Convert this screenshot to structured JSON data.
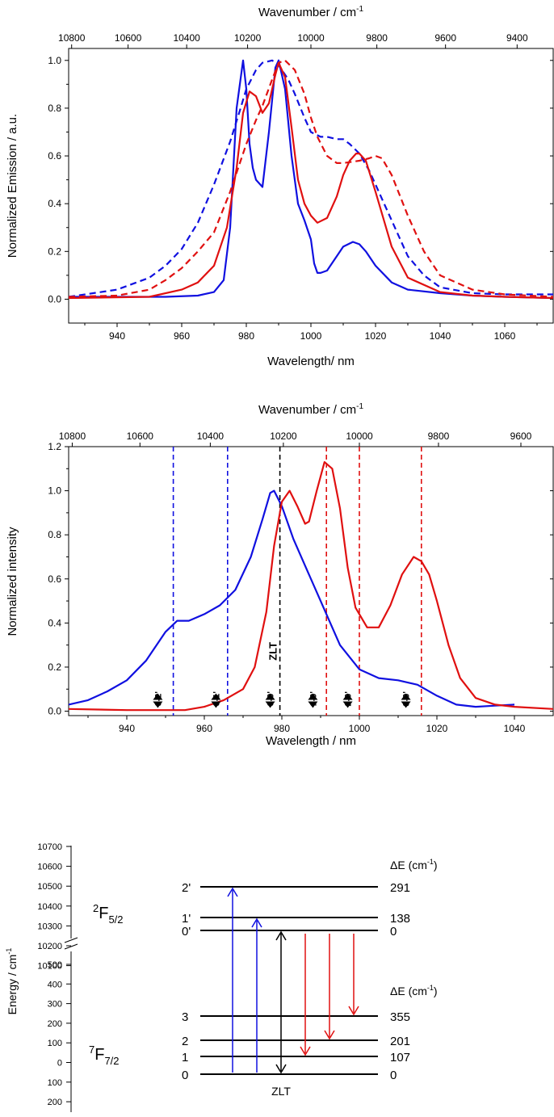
{
  "chart_data": [
    {
      "type": "line",
      "xlabel": "Wavelength/ nm",
      "ylabel": "Normalized Emission / a.u.",
      "x2label_prefix": "Wavenumber / cm",
      "x2label_sup": "-1",
      "xlim": [
        925,
        1075
      ],
      "ylim": [
        -0.1,
        1.05
      ],
      "xticks": [
        "940",
        "960",
        "980",
        "1000",
        "1020",
        "1040",
        "1060"
      ],
      "yticks": [
        "0.0",
        "0.2",
        "0.4",
        "0.6",
        "0.8",
        "1.0"
      ],
      "x2ticks": [
        "10800",
        "10600",
        "10400",
        "10200",
        "10000",
        "9800",
        "9600",
        "9400"
      ],
      "series": [
        {
          "color": "#1010e0",
          "dash": false,
          "x": [
            925,
            940,
            955,
            965,
            970,
            973,
            975,
            977,
            979,
            980,
            981,
            982,
            983,
            985,
            987,
            989,
            990,
            992,
            994,
            996,
            998,
            1000,
            1001,
            1002,
            1003,
            1005,
            1008,
            1010,
            1013,
            1015,
            1017,
            1020,
            1025,
            1030,
            1040,
            1050,
            1060,
            1075
          ],
          "y": [
            0.01,
            0.01,
            0.01,
            0.015,
            0.03,
            0.08,
            0.3,
            0.8,
            1.0,
            0.88,
            0.65,
            0.55,
            0.5,
            0.47,
            0.7,
            0.97,
            1.0,
            0.88,
            0.6,
            0.4,
            0.33,
            0.25,
            0.15,
            0.11,
            0.11,
            0.12,
            0.18,
            0.22,
            0.24,
            0.23,
            0.2,
            0.14,
            0.07,
            0.04,
            0.025,
            0.015,
            0.01,
            0.005
          ]
        },
        {
          "color": "#1010e0",
          "dash": true,
          "x": [
            925,
            940,
            950,
            955,
            960,
            965,
            970,
            975,
            978,
            980,
            983,
            985,
            988,
            990,
            993,
            995,
            998,
            1000,
            1003,
            1005,
            1008,
            1010,
            1012,
            1015,
            1018,
            1020,
            1025,
            1030,
            1035,
            1040,
            1050,
            1060,
            1075
          ],
          "y": [
            0.01,
            0.04,
            0.09,
            0.14,
            0.21,
            0.32,
            0.48,
            0.66,
            0.79,
            0.88,
            0.96,
            0.99,
            1.0,
            0.98,
            0.92,
            0.86,
            0.76,
            0.7,
            0.68,
            0.68,
            0.67,
            0.67,
            0.65,
            0.61,
            0.54,
            0.48,
            0.33,
            0.18,
            0.1,
            0.05,
            0.025,
            0.02,
            0.02
          ]
        },
        {
          "color": "#e01010",
          "dash": false,
          "x": [
            925,
            950,
            960,
            965,
            970,
            974,
            977,
            979,
            981,
            983,
            985,
            987,
            989,
            990,
            992,
            994,
            996,
            998,
            1000,
            1002,
            1005,
            1008,
            1010,
            1012,
            1014,
            1015,
            1017,
            1020,
            1025,
            1030,
            1040,
            1050,
            1060,
            1075
          ],
          "y": [
            0.005,
            0.01,
            0.04,
            0.07,
            0.14,
            0.3,
            0.55,
            0.78,
            0.87,
            0.85,
            0.78,
            0.82,
            0.94,
            0.99,
            0.93,
            0.72,
            0.5,
            0.4,
            0.35,
            0.32,
            0.34,
            0.43,
            0.52,
            0.58,
            0.61,
            0.61,
            0.58,
            0.45,
            0.22,
            0.09,
            0.03,
            0.015,
            0.01,
            0.005
          ]
        },
        {
          "color": "#e01010",
          "dash": true,
          "x": [
            925,
            940,
            950,
            955,
            960,
            965,
            970,
            975,
            978,
            980,
            983,
            985,
            988,
            990,
            992,
            995,
            998,
            1000,
            1002,
            1005,
            1008,
            1010,
            1015,
            1018,
            1020,
            1022,
            1025,
            1030,
            1035,
            1040,
            1050,
            1060,
            1075
          ],
          "y": [
            0.01,
            0.015,
            0.04,
            0.08,
            0.13,
            0.2,
            0.28,
            0.45,
            0.57,
            0.65,
            0.75,
            0.81,
            0.92,
            0.99,
            1.0,
            0.96,
            0.86,
            0.76,
            0.68,
            0.6,
            0.57,
            0.57,
            0.58,
            0.59,
            0.6,
            0.59,
            0.52,
            0.35,
            0.2,
            0.1,
            0.04,
            0.02,
            0.01
          ]
        }
      ]
    },
    {
      "type": "line",
      "xlabel": "Wavelength / nm",
      "ylabel": "Normalized intensity",
      "x2label_prefix": "Wavenumber / cm",
      "x2label_sup": "-1",
      "xlim": [
        925,
        1050
      ],
      "ylim": [
        -0.02,
        1.2
      ],
      "xticks": [
        "940",
        "960",
        "980",
        "1000",
        "1020",
        "1040"
      ],
      "yticks": [
        "0.0",
        "0.2",
        "0.4",
        "0.6",
        "0.8",
        "1.0",
        "1.2"
      ],
      "x2ticks": [
        "10800",
        "10600",
        "10400",
        "10200",
        "10000",
        "9800",
        "9600"
      ],
      "series": [
        {
          "color": "#1010e0",
          "dash": false,
          "x": [
            925,
            930,
            935,
            940,
            945,
            950,
            953,
            956,
            960,
            964,
            968,
            972,
            975,
            977,
            978,
            980,
            983,
            986,
            990,
            995,
            1000,
            1005,
            1010,
            1015,
            1020,
            1025,
            1030,
            1035,
            1040
          ],
          "y": [
            0.03,
            0.05,
            0.09,
            0.14,
            0.23,
            0.36,
            0.41,
            0.41,
            0.44,
            0.48,
            0.55,
            0.7,
            0.87,
            0.99,
            1.0,
            0.93,
            0.78,
            0.66,
            0.5,
            0.3,
            0.19,
            0.15,
            0.14,
            0.12,
            0.07,
            0.03,
            0.02,
            0.025,
            0.03
          ]
        },
        {
          "color": "#e01010",
          "dash": false,
          "x": [
            925,
            940,
            955,
            960,
            965,
            970,
            973,
            976,
            978,
            980,
            982,
            984,
            986,
            987,
            989,
            991,
            993,
            995,
            997,
            999,
            1002,
            1005,
            1008,
            1011,
            1014,
            1016,
            1018,
            1020,
            1023,
            1026,
            1030,
            1035,
            1040,
            1050
          ],
          "y": [
            0.01,
            0.005,
            0.005,
            0.02,
            0.05,
            0.1,
            0.2,
            0.45,
            0.75,
            0.95,
            1.0,
            0.93,
            0.85,
            0.86,
            1.0,
            1.13,
            1.1,
            0.92,
            0.65,
            0.47,
            0.38,
            0.38,
            0.48,
            0.62,
            0.7,
            0.68,
            0.62,
            0.5,
            0.3,
            0.15,
            0.06,
            0.03,
            0.02,
            0.01
          ]
        }
      ],
      "vlines": [
        {
          "x": 952,
          "color": "#1010e0"
        },
        {
          "x": 966,
          "color": "#1010e0"
        },
        {
          "x": 979.5,
          "color": "#000000"
        },
        {
          "x": 991.5,
          "color": "#e01010"
        },
        {
          "x": 1000,
          "color": "#e01010"
        },
        {
          "x": 1016,
          "color": "#e01010"
        }
      ],
      "annotations": [
        {
          "x": 948,
          "text": "0-2'"
        },
        {
          "x": 963,
          "text": "0-1'"
        },
        {
          "x": 977,
          "text": "0-0'"
        },
        {
          "x": 988,
          "text": "1-0'"
        },
        {
          "x": 997,
          "text": "2-0'"
        },
        {
          "x": 1012,
          "text": "3-0'"
        }
      ],
      "zlt_label": "ZLT"
    }
  ],
  "energy_diagram": {
    "ylabel_prefix": "Energy / cm",
    "ylabel_sup": "-1",
    "upper_ticks": [
      "10700",
      "10600",
      "10500",
      "10400",
      "10300",
      "10200",
      "10100"
    ],
    "lower_ticks": [
      "500",
      "400",
      "300",
      "200",
      "100",
      "0",
      "100",
      "200"
    ],
    "upper_term_base": "2",
    "upper_term_letter": "F",
    "upper_term_sub": "5/2",
    "lower_term_base": "7",
    "lower_term_letter": "F",
    "lower_term_sub": "7/2",
    "delta_label_prefix": "ΔE (cm",
    "delta_label_sup": "-1",
    "delta_label_suffix": ")",
    "upper_levels": [
      {
        "label": "2'",
        "value": "291"
      },
      {
        "label": "1'",
        "value": "138"
      },
      {
        "label": "0'",
        "value": "0"
      }
    ],
    "lower_levels": [
      {
        "label": "3",
        "value": "355"
      },
      {
        "label": "2",
        "value": "201"
      },
      {
        "label": "1",
        "value": "107"
      },
      {
        "label": "0",
        "value": "0"
      }
    ],
    "zlt_label": "ZLT"
  }
}
